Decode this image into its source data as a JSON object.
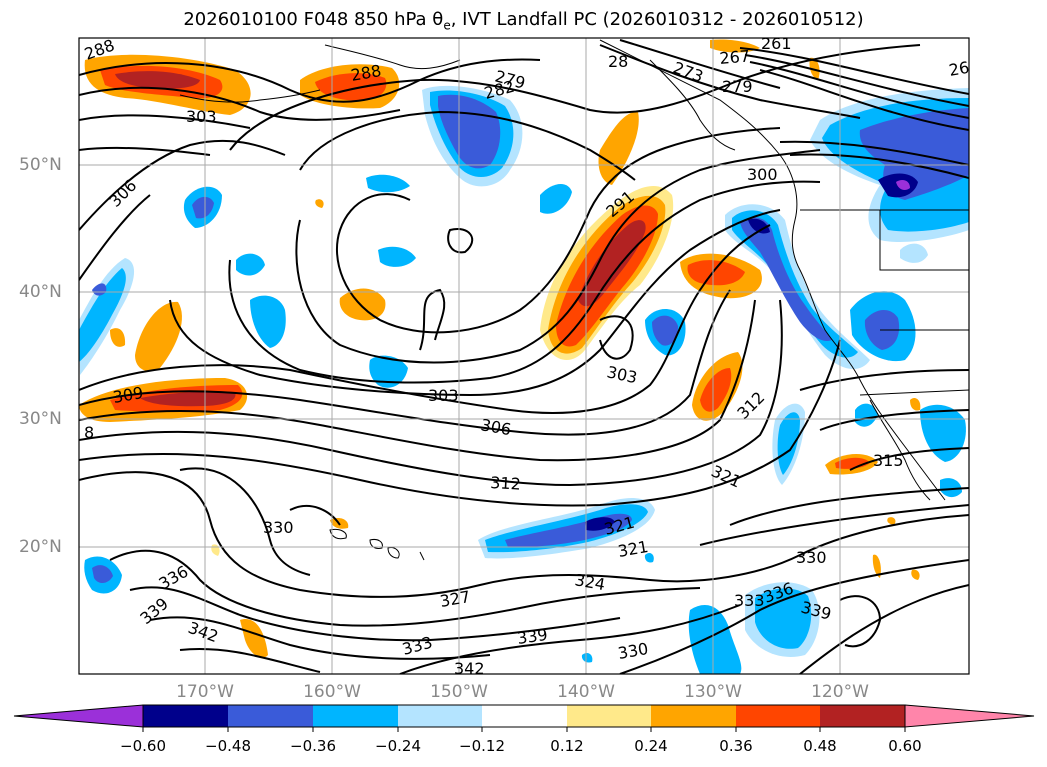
{
  "title": {
    "prefix": "2026010100 F048 850 hPa θ",
    "sub": "e",
    "suffix": ", IVT Landfall PC (2026010312 - 2026010512)"
  },
  "map": {
    "lat_labels": [
      "50°N",
      "40°N",
      "30°N",
      "20°N"
    ],
    "lon_labels": [
      "170°W",
      "160°W",
      "150°W",
      "140°W",
      "130°W",
      "120°W"
    ],
    "contour_labels": [
      {
        "text": "288",
        "rot": -20
      },
      {
        "text": "303",
        "rot": 0
      },
      {
        "text": "306",
        "rot": -45
      },
      {
        "text": "309",
        "rot": -10
      },
      {
        "text": "8",
        "rot": 0
      },
      {
        "text": "288",
        "rot": -10
      },
      {
        "text": "279",
        "rot": 15
      },
      {
        "text": "282",
        "rot": -15
      },
      {
        "text": "28",
        "rot": 0
      },
      {
        "text": "273",
        "rot": 20
      },
      {
        "text": "267",
        "rot": -5
      },
      {
        "text": "261",
        "rot": 0
      },
      {
        "text": "279",
        "rot": 0
      },
      {
        "text": "26",
        "rot": -10
      },
      {
        "text": "291",
        "rot": -40
      },
      {
        "text": "300",
        "rot": 0
      },
      {
        "text": "303",
        "rot": 12
      },
      {
        "text": "303",
        "rot": 0
      },
      {
        "text": "306",
        "rot": 10
      },
      {
        "text": "312",
        "rot": 3
      },
      {
        "text": "321",
        "rot": 25
      },
      {
        "text": "312",
        "rot": -45
      },
      {
        "text": "315",
        "rot": 0
      },
      {
        "text": "330",
        "rot": 0
      },
      {
        "text": "321",
        "rot": -15
      },
      {
        "text": "321",
        "rot": -10
      },
      {
        "text": "324",
        "rot": 10
      },
      {
        "text": "330",
        "rot": 0
      },
      {
        "text": "336",
        "rot": -30
      },
      {
        "text": "339",
        "rot": -40
      },
      {
        "text": "342",
        "rot": 20
      },
      {
        "text": "327",
        "rot": -10
      },
      {
        "text": "333",
        "rot": -15
      },
      {
        "text": "339",
        "rot": -8
      },
      {
        "text": "330",
        "rot": -10
      },
      {
        "text": "342",
        "rot": 0
      },
      {
        "text": "333",
        "rot": 0
      },
      {
        "text": "336",
        "rot": -20
      },
      {
        "text": "339",
        "rot": 15
      }
    ]
  },
  "colorbar": {
    "ticks": [
      "−0.60",
      "−0.48",
      "−0.36",
      "−0.24",
      "−0.12",
      "0.12",
      "0.24",
      "0.36",
      "0.48",
      "0.60"
    ],
    "under_color": "#9b30d9",
    "over_color": "#ff85aa",
    "colors": [
      "#00008b",
      "#3a5bd9",
      "#00b5ff",
      "#b4e4ff",
      "#ffffff",
      "#ffe98a",
      "#ffa500",
      "#ff4500",
      "#b22222"
    ]
  },
  "colors": {
    "neg_dark": "#00008b",
    "neg_mid": "#3a5bd9",
    "neg_light": "#00b5ff",
    "neg_pale": "#b4e4ff",
    "pos_pale": "#ffe98a",
    "pos_light": "#ffa500",
    "pos_mid": "#ff4500",
    "pos_dark": "#b22222",
    "under": "#9b30d9",
    "grid": "#aaaaaa"
  }
}
